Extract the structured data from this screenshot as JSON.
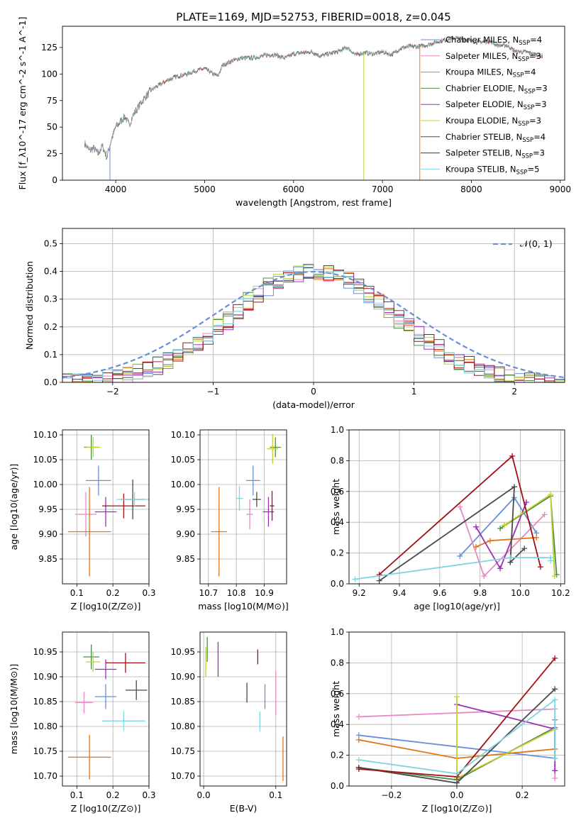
{
  "title": "PLATE=1169, MJD=52753, FIBERID=0018, z=0.045",
  "colors": [
    "#6a8fd6",
    "#e78ac3",
    "#e0761a",
    "#4c8c4a",
    "#9b30b5",
    "#c0d030",
    "#4a4a4a",
    "#a01015",
    "#7fd5e0"
  ],
  "chart_data": [
    {
      "type": "line",
      "id": "spectrum",
      "xlabel": "wavelength [Angstrom, rest frame]",
      "ylabel": "Flux [f_λ10^-17 erg cm^-2 s^-1 A^-1]",
      "xlim": [
        3400,
        9050
      ],
      "ylim": [
        0,
        145
      ],
      "xticks": [
        4000,
        5000,
        6000,
        7000,
        8000,
        9000
      ],
      "yticks": [
        0,
        25,
        50,
        75,
        100,
        125
      ],
      "legend_position": "top-right",
      "series_names": [
        "Chabrier MILES, N_SSP=4",
        "Salpeter MILES, N_SSP=3",
        "Kroupa MILES, N_SSP=4",
        "Chabrier ELODIE, N_SSP=3",
        "Salpeter ELODIE, N_SSP=3",
        "Kroupa ELODIE, N_SSP=3",
        "Chabrier STELIB, N_SSP=4",
        "Salpeter STELIB, N_SSP=3",
        "Kroupa STELIB, N_SSP=5"
      ],
      "legend_labels": [
        {
          "name": "Chabrier MILES, N",
          "sub": "SSP",
          "tail": "=4"
        },
        {
          "name": "Salpeter MILES, N",
          "sub": "SSP",
          "tail": "=3"
        },
        {
          "name": "Kroupa MILES, N",
          "sub": "SSP",
          "tail": "=4"
        },
        {
          "name": "Chabrier ELODIE, N",
          "sub": "SSP",
          "tail": "=3"
        },
        {
          "name": "Salpeter ELODIE, N",
          "sub": "SSP",
          "tail": "=3"
        },
        {
          "name": "Kroupa ELODIE, N",
          "sub": "SSP",
          "tail": "=3"
        },
        {
          "name": "Chabrier STELIB, N",
          "sub": "SSP",
          "tail": "=4"
        },
        {
          "name": "Salpeter STELIB, N",
          "sub": "SSP",
          "tail": "=3"
        },
        {
          "name": "Kroupa STELIB, N",
          "sub": "SSP",
          "tail": "=5"
        }
      ],
      "anchor_x": [
        3650,
        3700,
        3750,
        3800,
        3850,
        3900,
        3950,
        4000,
        4050,
        4100,
        4150,
        4200,
        4300,
        4400,
        4500,
        4600,
        4700,
        4800,
        4900,
        5000,
        5100,
        5150,
        5200,
        5300,
        5400,
        5500,
        5600,
        5700,
        5800,
        5900,
        6000,
        6100,
        6200,
        6300,
        6400,
        6500,
        6600,
        6700,
        6800,
        6900,
        7000,
        7100,
        7200,
        7300,
        7400,
        7500,
        7600,
        7700,
        7800,
        7900,
        8000,
        8100,
        8200,
        8300,
        8400,
        8500,
        8600,
        8700,
        8800
      ],
      "anchor_y": [
        35,
        28,
        30,
        25,
        32,
        22,
        38,
        50,
        55,
        60,
        52,
        62,
        75,
        85,
        90,
        95,
        98,
        100,
        103,
        105,
        100,
        98,
        108,
        112,
        115,
        115,
        116,
        118,
        118,
        115,
        119,
        120,
        121,
        117,
        119,
        121,
        125,
        118,
        120,
        119,
        121,
        118,
        124,
        126,
        126,
        127,
        130,
        132,
        134,
        133,
        131,
        130,
        131,
        127,
        127,
        121,
        121,
        119,
        117
      ],
      "drops": [
        [
          3935,
          0
        ],
        [
          6790,
          0
        ],
        [
          7420,
          0
        ]
      ]
    },
    {
      "type": "histogram",
      "id": "residuals",
      "xlabel": "(data-model)/error",
      "ylabel": "Normed distribution",
      "xlim": [
        -2.5,
        2.5
      ],
      "ylim": [
        0,
        0.555
      ],
      "xticks": [
        -2,
        -1,
        0,
        1,
        2
      ],
      "yticks": [
        0.0,
        0.1,
        0.2,
        0.3,
        0.4,
        0.5
      ],
      "grid": true,
      "legend_position": "top-right",
      "gaussian_label": "𝒩(0, 1)",
      "bin_width": 0.1,
      "approx_series_offsets": [
        0,
        -0.05,
        0.05,
        -0.1,
        0.08,
        -0.03,
        0.1,
        0.02,
        -0.07
      ]
    },
    {
      "type": "scatter",
      "id": "Z_vs_age",
      "xlabel": "Z [log10(Z/Z⊙)]",
      "ylabel": "age  [log10(age/yr)]",
      "xlim": [
        0.06,
        0.3
      ],
      "ylim": [
        9.8,
        10.11
      ],
      "xticks": [
        0.1,
        0.2,
        0.3
      ],
      "yticks": [
        9.85,
        9.9,
        9.95,
        10.0,
        10.05,
        10.1
      ],
      "points": [
        {
          "x": 0.16,
          "xerr": 0.035,
          "y": 10.008,
          "yerr": 0.03
        },
        {
          "x": 0.125,
          "xerr": 0.03,
          "y": 9.94,
          "yerr": 0.045
        },
        {
          "x": 0.135,
          "xerr": 0.06,
          "y": 9.905,
          "yerr": 0.09
        },
        {
          "x": 0.14,
          "xerr": 0.02,
          "y": 10.075,
          "yerr": 0.025
        },
        {
          "x": 0.18,
          "xerr": 0.03,
          "y": 9.945,
          "yerr": 0.03
        },
        {
          "x": 0.145,
          "xerr": 0.02,
          "y": 10.075,
          "yerr": 0.02
        },
        {
          "x": 0.255,
          "xerr": 0.035,
          "y": 9.97,
          "yerr": 0.04
        },
        {
          "x": 0.23,
          "xerr": 0.06,
          "y": 9.957,
          "yerr": 0.025
        },
        {
          "x": 0.26,
          "xerr": 0.05,
          "y": 9.97,
          "yerr": 0.015
        }
      ]
    },
    {
      "type": "scatter",
      "id": "mass_vs_age",
      "xlabel": "mass [log10(M/M⊙)]",
      "ylabel": "",
      "xlim": [
        10.67,
        10.98
      ],
      "ylim": [
        9.8,
        10.11
      ],
      "xticks": [
        10.7,
        10.8,
        10.9
      ],
      "yticks": [
        9.85,
        9.9,
        9.95,
        10.0,
        10.05,
        10.1
      ],
      "points": [
        {
          "x": 10.86,
          "xerr": 0.025,
          "y": 10.008,
          "yerr": 0.03
        },
        {
          "x": 10.848,
          "xerr": 0.012,
          "y": 9.94,
          "yerr": 0.03
        },
        {
          "x": 10.738,
          "xerr": 0.028,
          "y": 9.905,
          "yerr": 0.09
        },
        {
          "x": 10.94,
          "xerr": 0.02,
          "y": 10.075,
          "yerr": 0.02
        },
        {
          "x": 10.915,
          "xerr": 0.02,
          "y": 9.945,
          "yerr": 0.03
        },
        {
          "x": 10.93,
          "xerr": 0.02,
          "y": 10.072,
          "yerr": 0.03
        },
        {
          "x": 10.873,
          "xerr": 0.015,
          "y": 9.97,
          "yerr": 0.015
        },
        {
          "x": 10.928,
          "xerr": 0.008,
          "y": 9.957,
          "yerr": 0.03
        },
        {
          "x": 10.811,
          "xerr": 0.012,
          "y": 9.972,
          "yerr": 0.025
        }
      ]
    },
    {
      "type": "line",
      "id": "age_vs_weight",
      "xlabel": "age  [log10(age/yr)]",
      "ylabel": "mass weight",
      "xlim": [
        9.15,
        10.22
      ],
      "ylim": [
        0,
        1.0
      ],
      "xticks": [
        9.2,
        9.4,
        9.6,
        9.8,
        10.0,
        10.2
      ],
      "yticks": [
        0.0,
        0.2,
        0.4,
        0.6,
        0.8,
        1.0
      ],
      "series": [
        {
          "x": [
            9.7,
            9.97,
            10.08
          ],
          "y": [
            0.18,
            0.56,
            0.33
          ]
        },
        {
          "x": [
            9.7,
            9.82,
            10.12
          ],
          "y": [
            0.5,
            0.05,
            0.45
          ]
        },
        {
          "x": [
            9.78,
            9.85,
            10.08
          ],
          "y": [
            0.24,
            0.28,
            0.3
          ]
        },
        {
          "x": [
            9.9,
            10.15,
            10.18
          ],
          "y": [
            0.36,
            0.57,
            0.06
          ]
        },
        {
          "x": [
            9.78,
            9.9,
            10.03
          ],
          "y": [
            0.37,
            0.1,
            0.53
          ]
        },
        {
          "x": [
            9.92,
            10.15,
            10.17
          ],
          "y": [
            0.38,
            0.58,
            0.05
          ]
        },
        {
          "x": 9.3,
          "x_": 0,
          "y": 0.02,
          "pairs": [
            [
              9.3,
              0.02
            ],
            [
              9.97,
              0.63
            ],
            [
              9.95,
              0.14
            ],
            [
              10.02,
              0.23
            ]
          ]
        },
        {
          "pairs": [
            [
              9.3,
              0.06
            ],
            [
              9.96,
              0.83
            ],
            [
              10.1,
              0.11
            ]
          ]
        },
        {
          "pairs": [
            [
              9.18,
              0.03
            ],
            [
              9.95,
              0.17
            ],
            [
              10.15,
              0.17
            ],
            [
              10.15,
              0.15
            ]
          ]
        }
      ]
    },
    {
      "type": "scatter",
      "id": "Z_vs_mass",
      "xlabel": "Z [log10(Z/Z⊙)]",
      "ylabel": "mass [log10(M/M⊙)]",
      "xlim": [
        0.06,
        0.3
      ],
      "ylim": [
        10.68,
        10.99
      ],
      "xticks": [
        0.1,
        0.2,
        0.3
      ],
      "yticks": [
        10.7,
        10.75,
        10.8,
        10.85,
        10.9,
        10.95
      ],
      "points": [
        {
          "x": 0.18,
          "xerr": 0.03,
          "y": 10.86,
          "yerr": 0.025
        },
        {
          "x": 0.12,
          "xerr": 0.025,
          "y": 10.848,
          "yerr": 0.022
        },
        {
          "x": 0.135,
          "xerr": 0.06,
          "y": 10.738,
          "yerr": 0.045
        },
        {
          "x": 0.14,
          "xerr": 0.022,
          "y": 10.94,
          "yerr": 0.025
        },
        {
          "x": 0.18,
          "xerr": 0.03,
          "y": 10.915,
          "yerr": 0.02
        },
        {
          "x": 0.145,
          "xerr": 0.02,
          "y": 10.93,
          "yerr": 0.02
        },
        {
          "x": 0.265,
          "xerr": 0.03,
          "y": 10.873,
          "yerr": 0.02
        },
        {
          "x": 0.235,
          "xerr": 0.055,
          "y": 10.928,
          "yerr": 0.02
        },
        {
          "x": 0.23,
          "xerr": 0.06,
          "y": 10.811,
          "yerr": 0.02
        }
      ]
    },
    {
      "type": "scatter",
      "id": "EBV_vs_mass",
      "xlabel": "E(B-V)",
      "ylabel": "",
      "xlim": [
        -0.005,
        0.115
      ],
      "ylim": [
        10.68,
        10.99
      ],
      "xticks": [
        0.0,
        0.1
      ],
      "yticks": [
        10.7,
        10.75,
        10.8,
        10.85,
        10.9,
        10.95
      ],
      "points": [
        {
          "x": 0.085,
          "xerr": 0,
          "y": 10.86,
          "yerr": 0.025
        },
        {
          "x": 0.1,
          "xerr": 0,
          "y": 10.867,
          "yerr": 0.045
        },
        {
          "x": 0.11,
          "xerr": 0,
          "y": 10.735,
          "yerr": 0.045
        },
        {
          "x": 0.005,
          "xerr": 0,
          "y": 10.955,
          "yerr": 0.025
        },
        {
          "x": 0.02,
          "xerr": 0,
          "y": 10.935,
          "yerr": 0.035
        },
        {
          "x": 0.003,
          "xerr": 0,
          "y": 10.93,
          "yerr": 0.03
        },
        {
          "x": 0.06,
          "xerr": 0,
          "y": 10.868,
          "yerr": 0.02
        },
        {
          "x": 0.075,
          "xerr": 0,
          "y": 10.94,
          "yerr": 0.015
        },
        {
          "x": 0.078,
          "xerr": 0,
          "y": 10.81,
          "yerr": 0.02
        }
      ]
    },
    {
      "type": "line",
      "id": "Z_vs_weight",
      "xlabel": "Z [log10(Z/Z⊙)]",
      "ylabel": "mass weight",
      "xlim": [
        -0.33,
        0.33
      ],
      "ylim": [
        0,
        1.0
      ],
      "xticks": [
        -0.2,
        0.0,
        0.2
      ],
      "yticks": [
        0.0,
        0.2,
        0.4,
        0.6,
        0.8,
        1.0
      ],
      "series": [
        {
          "pairs": [
            [
              -0.3,
              0.33
            ],
            [
              0.3,
              0.18
            ],
            [
              0.3,
              0.43
            ]
          ]
        },
        {
          "pairs": [
            [
              -0.3,
              0.45
            ],
            [
              0.3,
              0.5
            ],
            [
              0.3,
              0.05
            ]
          ]
        },
        {
          "pairs": [
            [
              -0.3,
              0.3
            ],
            [
              0.0,
              0.18
            ],
            [
              0.3,
              0.24
            ]
          ]
        },
        {
          "pairs": [
            [
              -0.3,
              0.12
            ],
            [
              0.0,
              0.04
            ],
            [
              0.3,
              0.38
            ]
          ]
        },
        {
          "pairs": [
            [
              0.0,
              0.53
            ],
            [
              0.3,
              0.37
            ],
            [
              0.3,
              0.1
            ]
          ]
        },
        {
          "pairs": [
            [
              0.0,
              0.58
            ],
            [
              0.0,
              0.05
            ],
            [
              0.3,
              0.37
            ]
          ]
        },
        {
          "pairs": [
            [
              -0.3,
              0.12
            ],
            [
              0.0,
              0.02
            ],
            [
              0.3,
              0.63
            ]
          ]
        },
        {
          "pairs": [
            [
              -0.3,
              0.11
            ],
            [
              0.0,
              0.06
            ],
            [
              0.3,
              0.83
            ]
          ]
        },
        {
          "pairs": [
            [
              -0.3,
              0.17
            ],
            [
              0.0,
              0.08
            ],
            [
              0.3,
              0.56
            ],
            [
              0.3,
              0.18
            ]
          ]
        }
      ]
    }
  ]
}
